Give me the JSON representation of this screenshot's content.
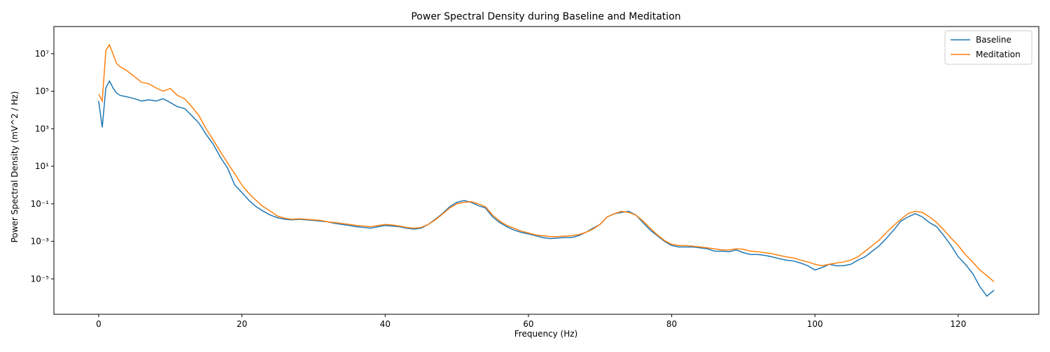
{
  "chart_data": {
    "type": "line",
    "title": "Power Spectral Density during Baseline and Meditation",
    "x_label": "Frequency (Hz)",
    "y_label": "Power Spectral Density (mV^2 / Hz)",
    "yscale": "log",
    "legend": "upper right",
    "xlim": [
      -6.25,
      131.25
    ],
    "ylim": [
      1.3e-07,
      280000000.0
    ],
    "xticks": [
      0,
      20,
      40,
      60,
      80,
      100,
      120
    ],
    "yticks": [
      {
        "value": 1e-05,
        "label": "10⁻⁵"
      },
      {
        "value": 0.001,
        "label": "10⁻³"
      },
      {
        "value": 0.1,
        "label": "10⁻¹"
      },
      {
        "value": 10,
        "label": "10¹"
      },
      {
        "value": 1000,
        "label": "10³"
      },
      {
        "value": 100000,
        "label": "10⁵"
      },
      {
        "value": 10000000,
        "label": "10⁷"
      }
    ],
    "x": [
      0,
      0.5,
      1,
      1.5,
      2,
      2.5,
      3,
      4,
      5,
      6,
      7,
      8,
      9,
      10,
      11,
      12,
      13,
      14,
      15,
      16,
      17,
      18,
      19,
      20,
      21,
      22,
      23,
      24,
      25,
      26,
      27,
      28,
      29,
      30,
      31,
      32,
      33,
      34,
      35,
      36,
      37,
      38,
      39,
      40,
      41,
      42,
      43,
      44,
      45,
      46,
      47,
      48,
      49,
      50,
      51,
      52,
      53,
      54,
      55,
      56,
      57,
      58,
      59,
      60,
      61,
      62,
      63,
      64,
      65,
      66,
      67,
      68,
      69,
      70,
      71,
      72,
      73,
      74,
      75,
      76,
      77,
      78,
      79,
      80,
      81,
      82,
      83,
      84,
      85,
      86,
      87,
      88,
      89,
      90,
      91,
      92,
      93,
      94,
      95,
      96,
      97,
      98,
      99,
      100,
      101,
      102,
      103,
      104,
      105,
      106,
      107,
      108,
      109,
      110,
      111,
      112,
      113,
      114,
      115,
      116,
      117,
      118,
      119,
      120,
      121,
      122,
      123,
      124,
      125
    ],
    "series": [
      {
        "name": "Baseline",
        "color": "#1f77b4",
        "values": [
          30000,
          1200,
          150000,
          350000,
          150000,
          80000,
          60000,
          50000,
          40000,
          30000,
          35000,
          30000,
          40000,
          25000,
          15000,
          12000,
          5000,
          2000,
          500,
          150,
          30,
          8,
          1,
          0.4,
          0.15,
          0.07,
          0.04,
          0.025,
          0.018,
          0.015,
          0.014,
          0.015,
          0.014,
          0.013,
          0.012,
          0.011,
          0.009,
          0.008,
          0.007,
          0.006,
          0.0055,
          0.005,
          0.006,
          0.007,
          0.0065,
          0.006,
          0.005,
          0.0045,
          0.005,
          0.008,
          0.015,
          0.03,
          0.07,
          0.12,
          0.15,
          0.12,
          0.08,
          0.06,
          0.02,
          0.01,
          0.006,
          0.004,
          0.003,
          0.0025,
          0.002,
          0.0016,
          0.0014,
          0.0015,
          0.0016,
          0.0016,
          0.002,
          0.003,
          0.005,
          0.008,
          0.02,
          0.03,
          0.035,
          0.04,
          0.025,
          0.01,
          0.004,
          0.002,
          0.001,
          0.0006,
          0.0005,
          0.0005,
          0.0005,
          0.00045,
          0.0004,
          0.0003,
          0.0003,
          0.00028,
          0.00035,
          0.00025,
          0.0002,
          0.0002,
          0.00018,
          0.00015,
          0.00012,
          0.0001,
          9e-05,
          7e-05,
          5e-05,
          3e-05,
          4e-05,
          6e-05,
          5e-05,
          5e-05,
          6e-05,
          0.0001,
          0.00015,
          0.0003,
          0.0006,
          0.0015,
          0.004,
          0.012,
          0.02,
          0.03,
          0.02,
          0.01,
          0.006,
          0.002,
          0.0006,
          0.00015,
          6e-05,
          2e-05,
          4e-06,
          1.2e-06,
          2.5e-06
        ]
      },
      {
        "name": "Meditation",
        "color": "#ff7f0e",
        "values": [
          70000,
          30000,
          15000000,
          30000000,
          10000000,
          3000000,
          2000000,
          1200000,
          600000,
          300000,
          250000,
          150000,
          100000,
          140000,
          60000,
          40000,
          15000,
          5000,
          1000,
          250,
          60,
          15,
          4,
          1,
          0.35,
          0.15,
          0.07,
          0.04,
          0.022,
          0.017,
          0.015,
          0.016,
          0.015,
          0.014,
          0.013,
          0.011,
          0.01,
          0.009,
          0.008,
          0.007,
          0.0065,
          0.006,
          0.007,
          0.008,
          0.0075,
          0.0065,
          0.0055,
          0.005,
          0.0055,
          0.008,
          0.014,
          0.028,
          0.06,
          0.1,
          0.12,
          0.13,
          0.1,
          0.07,
          0.025,
          0.012,
          0.007,
          0.005,
          0.0035,
          0.0028,
          0.0022,
          0.002,
          0.0018,
          0.0018,
          0.0019,
          0.002,
          0.0023,
          0.003,
          0.0045,
          0.008,
          0.02,
          0.03,
          0.04,
          0.035,
          0.025,
          0.012,
          0.005,
          0.0022,
          0.0011,
          0.0007,
          0.0006,
          0.0006,
          0.00055,
          0.0005,
          0.00045,
          0.0004,
          0.00035,
          0.00035,
          0.0004,
          0.00038,
          0.0003,
          0.00028,
          0.00025,
          0.00022,
          0.00018,
          0.00015,
          0.00013,
          0.0001,
          8e-05,
          6e-05,
          5e-05,
          6e-05,
          7e-05,
          8e-05,
          0.0001,
          0.00015,
          0.0003,
          0.0006,
          0.0012,
          0.003,
          0.007,
          0.015,
          0.03,
          0.04,
          0.035,
          0.02,
          0.01,
          0.004,
          0.0015,
          0.0006,
          0.0002,
          8e-05,
          3e-05,
          1.5e-05,
          7e-06
        ]
      }
    ]
  }
}
